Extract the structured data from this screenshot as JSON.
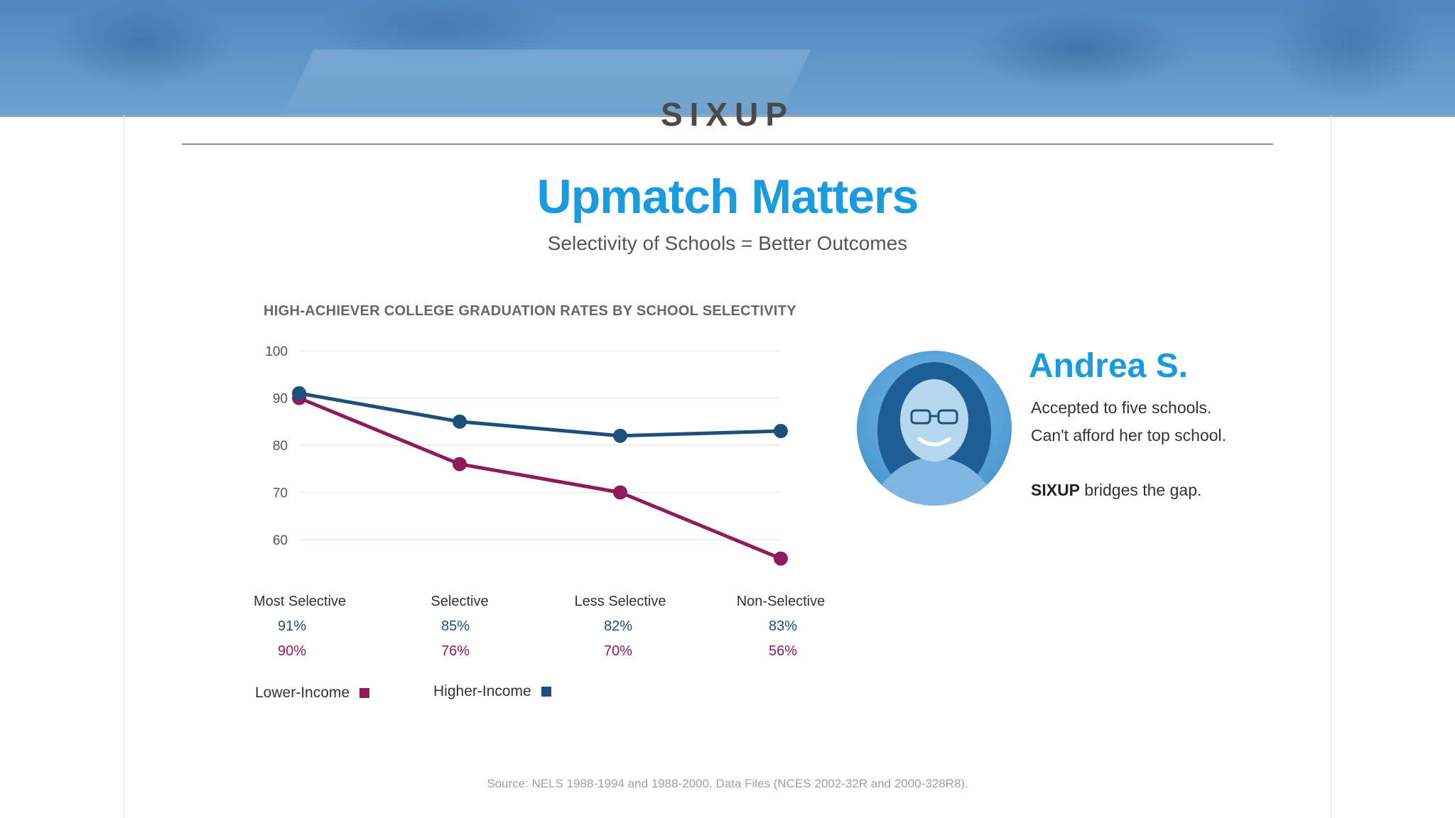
{
  "brand": {
    "logo": "SIXUP"
  },
  "header": {
    "title": "Upmatch Matters",
    "subtitle": "Selectivity of Schools = Better Outcomes"
  },
  "chart_data": {
    "type": "line",
    "title": "HIGH-ACHIEVER COLLEGE GRADUATION RATES BY SCHOOL SELECTIVITY",
    "categories": [
      "Most Selective",
      "Selective",
      "Less Selective",
      "Non-Selective"
    ],
    "y_ticks": [
      "100",
      "90",
      "80",
      "70",
      "60"
    ],
    "ylim": [
      56,
      100
    ],
    "grid": true,
    "legend_position": "bottom-left",
    "series": [
      {
        "name": "Higher-Income",
        "color": "#1d4f7c",
        "values": [
          91,
          85,
          82,
          83
        ],
        "labels": [
          "91%",
          "85%",
          "82%",
          "83%"
        ]
      },
      {
        "name": "Lower-Income",
        "color": "#8e1b5c",
        "values": [
          90,
          76,
          70,
          56
        ],
        "labels": [
          "90%",
          "76%",
          "70%",
          "56%"
        ]
      }
    ]
  },
  "profile": {
    "name": "Andrea S.",
    "line1": "Accepted to five schools.",
    "line2": "Can't afford her top school.",
    "line3_strong": "SIXUP",
    "line3_rest": " bridges the gap."
  },
  "footer": {
    "source": "Source: NELS 1988-1994 and 1988-2000. Data Files (NCES 2002-32R and 2000-328R8)."
  }
}
